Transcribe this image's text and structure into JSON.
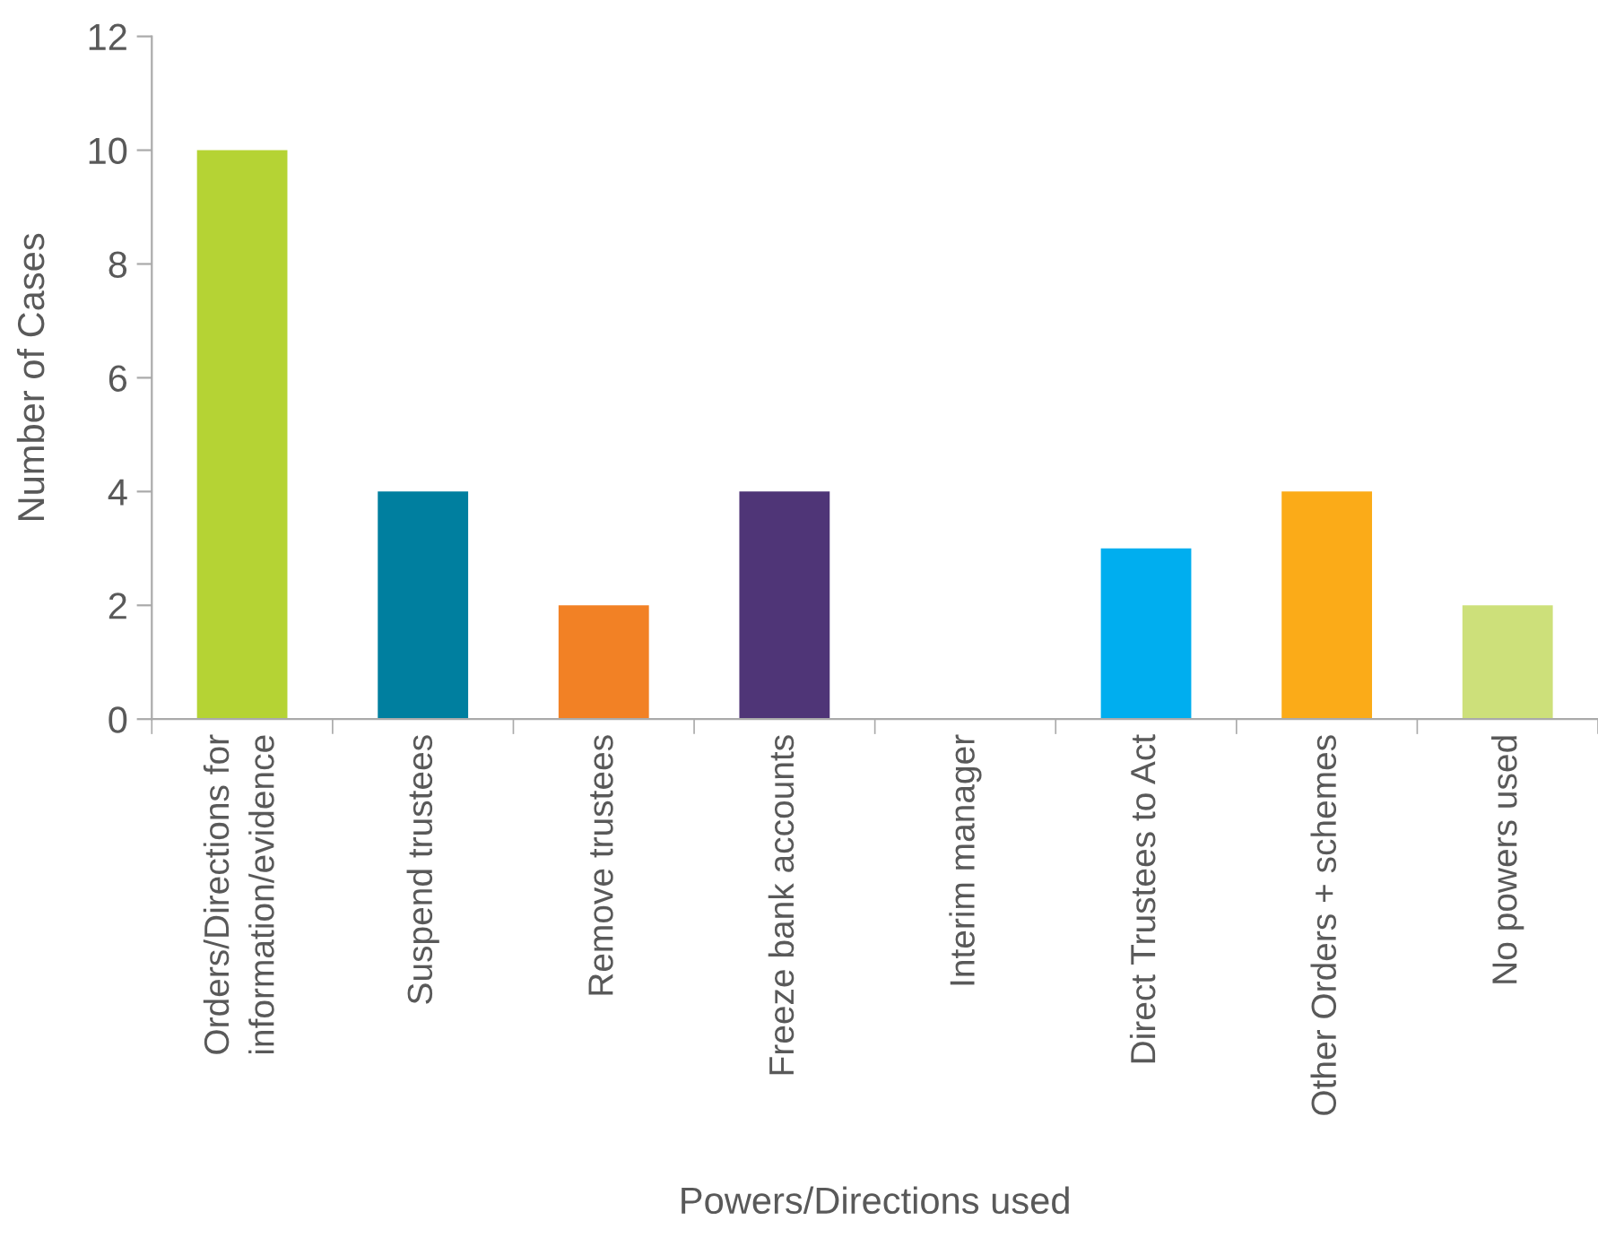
{
  "chart_data": {
    "type": "bar",
    "categories": [
      "Orders/Directions for\ninformation/evidence",
      "Suspend trustees",
      "Remove trustees",
      "Freeze bank accounts",
      "Interim manager",
      "Direct Trustees to Act",
      "Other Orders + schemes",
      "No powers used"
    ],
    "values": [
      10,
      4,
      2,
      4,
      0,
      3,
      4,
      2
    ],
    "colors": [
      "#b5d334",
      "#007f9f",
      "#f28125",
      "#4f3577",
      null,
      "#00aeef",
      "#fbab18",
      "#cde07a"
    ],
    "xlabel": "Powers/Directions used",
    "ylabel": "Number of Cases",
    "ylim": [
      0,
      12
    ],
    "yticks": [
      0,
      2,
      4,
      6,
      8,
      10,
      12
    ],
    "grid": false,
    "legend": false
  }
}
